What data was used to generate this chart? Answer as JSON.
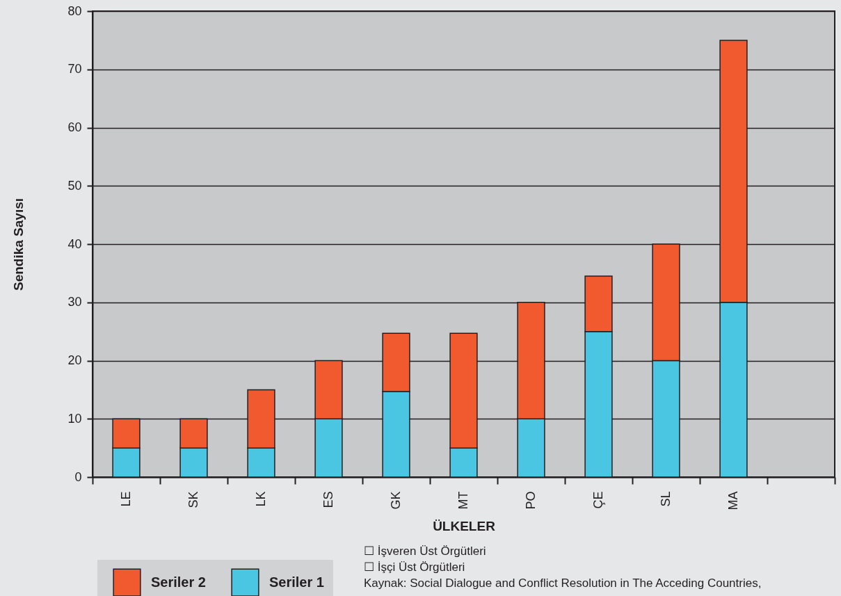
{
  "chart_data": {
    "type": "bar",
    "stacked": true,
    "xlabel": "ÜLKELER",
    "ylabel": "Sendika Sayısı",
    "categories": [
      "LE",
      "SK",
      "LK",
      "ES",
      "GK",
      "MT",
      "PO",
      "ÇE",
      "SL",
      "MA",
      null
    ],
    "series": [
      {
        "name": "Seriler 1",
        "color": "#4bc6e2",
        "values": [
          5,
          5,
          5,
          10,
          14.7,
          5,
          10,
          25,
          20,
          30,
          null
        ]
      },
      {
        "name": "Seriler 2",
        "color": "#f15a2e",
        "values": [
          5,
          5,
          10,
          10,
          10,
          19.7,
          20,
          9.5,
          20,
          45,
          null
        ]
      }
    ],
    "ylim": [
      0,
      80
    ],
    "yticks": [
      0,
      10,
      20,
      30,
      40,
      50,
      60,
      70,
      80
    ],
    "grid": "y",
    "legend": "bottom left",
    "annotations": [
      "☐ İşveren Üst Örgütleri",
      "☐ İşçi Üst Örgütleri",
      "Kaynak: Social Dialogue and Conflict Resolution in The Acceding Countries,"
    ]
  }
}
